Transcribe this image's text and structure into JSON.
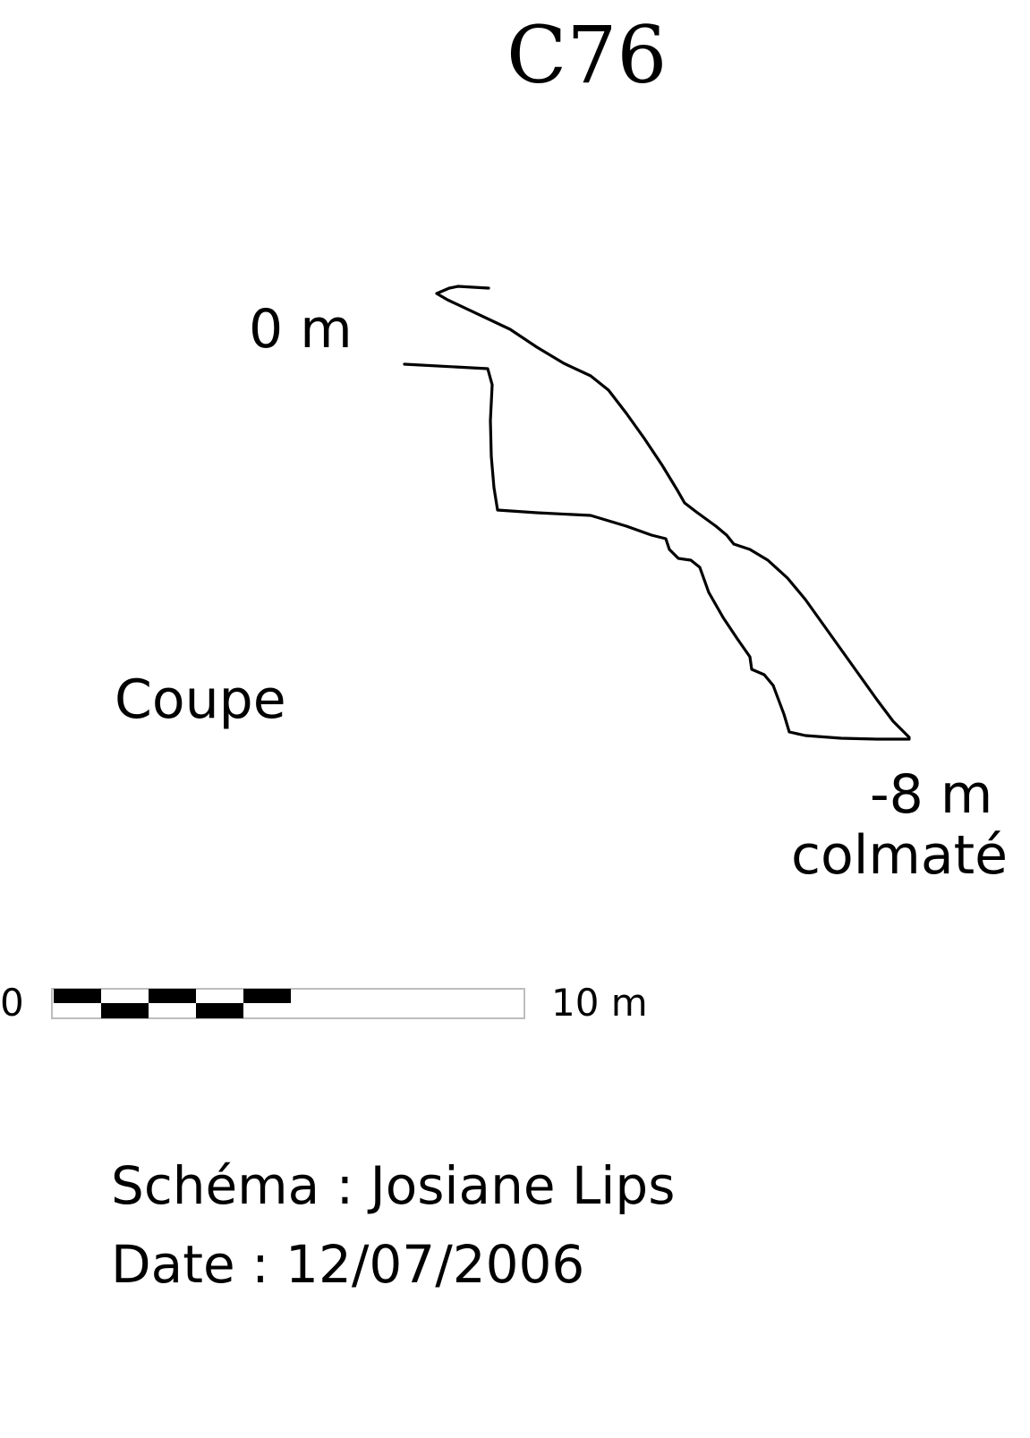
{
  "title": "C76",
  "labels": {
    "entrance_depth": "0 m",
    "section": "Coupe",
    "bottom_depth": "-8 m",
    "bottom_note": "colmaté"
  },
  "scale": {
    "start_label": "0",
    "end_label": "10 m",
    "segments": 10
  },
  "credits": {
    "schema": "Schéma : Josiane Lips",
    "date": "Date : 12/07/2006"
  },
  "colors": {
    "ink": "#000000",
    "scale_outline": "#bdbdbd",
    "background": "#ffffff"
  }
}
